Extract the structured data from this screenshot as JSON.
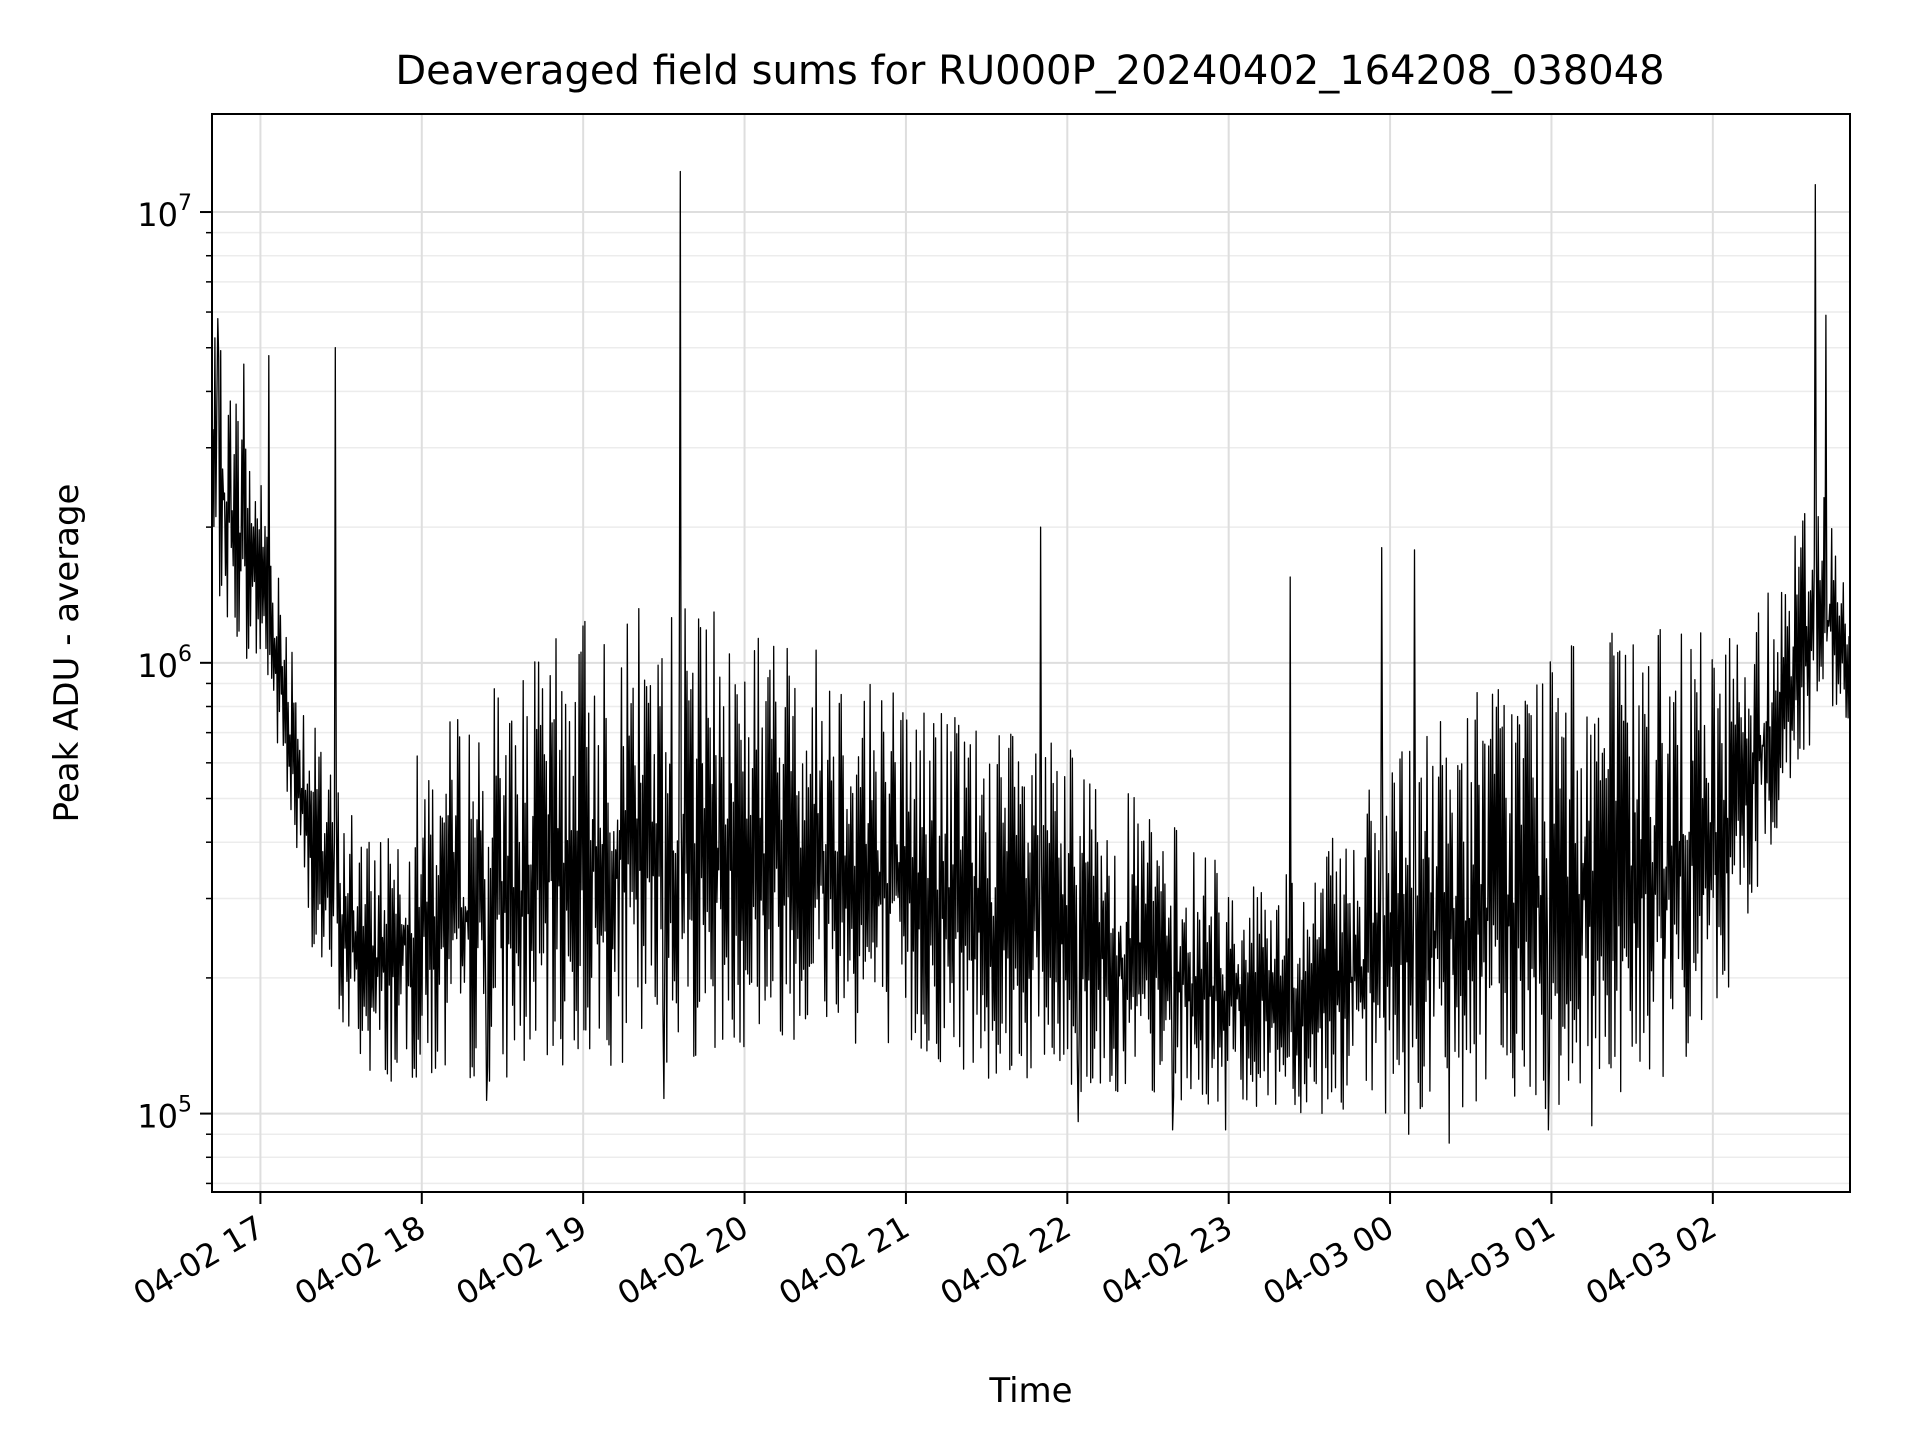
{
  "chart_data": {
    "type": "line",
    "title": "Deaveraged field sums for RU000P_20240402_164208_038048",
    "xlabel": "Time",
    "ylabel": "Peak ADU - average",
    "yscale": "log",
    "xlim": [
      "2024-04-02 16:42",
      "2024-04-03 02:51"
    ],
    "ylim": [
      67000,
      16500000
    ],
    "grid": true,
    "line_color": "#000000",
    "x_ticks": [
      {
        "time": "2024-04-02 17:00",
        "label": "04-02 17"
      },
      {
        "time": "2024-04-02 18:00",
        "label": "04-02 18"
      },
      {
        "time": "2024-04-02 19:00",
        "label": "04-02 19"
      },
      {
        "time": "2024-04-02 20:00",
        "label": "04-02 20"
      },
      {
        "time": "2024-04-02 21:00",
        "label": "04-02 21"
      },
      {
        "time": "2024-04-02 22:00",
        "label": "04-02 22"
      },
      {
        "time": "2024-04-02 23:00",
        "label": "04-02 23"
      },
      {
        "time": "2024-04-03 00:00",
        "label": "04-03 00"
      },
      {
        "time": "2024-04-03 01:00",
        "label": "04-03 01"
      },
      {
        "time": "2024-04-03 02:00",
        "label": "04-03 02"
      }
    ],
    "y_ticks": [
      {
        "value": 100000,
        "base": "10",
        "exp": "5"
      },
      {
        "value": 1000000,
        "base": "10",
        "exp": "6"
      },
      {
        "value": 10000000,
        "base": "10",
        "exp": "7"
      }
    ],
    "envelope": [
      {
        "t": "2024-04-02 16:42",
        "low": 1500000,
        "high": 5500000
      },
      {
        "t": "2024-04-02 16:48",
        "low": 1200000,
        "high": 4500000
      },
      {
        "t": "2024-04-02 16:55",
        "low": 1000000,
        "high": 3500000
      },
      {
        "t": "2024-04-02 17:02",
        "low": 900000,
        "high": 2500000
      },
      {
        "t": "2024-04-02 17:08",
        "low": 550000,
        "high": 1500000
      },
      {
        "t": "2024-04-02 17:15",
        "low": 300000,
        "high": 1000000
      },
      {
        "t": "2024-04-02 17:22",
        "low": 200000,
        "high": 650000
      },
      {
        "t": "2024-04-02 17:30",
        "low": 150000,
        "high": 550000
      },
      {
        "t": "2024-04-02 17:40",
        "low": 120000,
        "high": 400000
      },
      {
        "t": "2024-04-02 17:55",
        "low": 115000,
        "high": 600000
      },
      {
        "t": "2024-04-02 18:15",
        "low": 115000,
        "high": 800000
      },
      {
        "t": "2024-04-02 18:40",
        "low": 120000,
        "high": 1000000
      },
      {
        "t": "2024-04-02 19:00",
        "low": 125000,
        "high": 1300000
      },
      {
        "t": "2024-04-02 19:20",
        "low": 130000,
        "high": 1350000
      },
      {
        "t": "2024-04-02 19:40",
        "low": 130000,
        "high": 1350000
      },
      {
        "t": "2024-04-02 20:00",
        "low": 140000,
        "high": 1250000
      },
      {
        "t": "2024-04-02 20:30",
        "low": 150000,
        "high": 1100000
      },
      {
        "t": "2024-04-02 21:00",
        "low": 130000,
        "high": 900000
      },
      {
        "t": "2024-04-02 21:30",
        "low": 120000,
        "high": 750000
      },
      {
        "t": "2024-04-02 22:00",
        "low": 110000,
        "high": 650000
      },
      {
        "t": "2024-04-02 22:30",
        "low": 105000,
        "high": 480000
      },
      {
        "t": "2024-04-02 23:00",
        "low": 105000,
        "high": 350000
      },
      {
        "t": "2024-04-02 23:30",
        "low": 100000,
        "high": 350000
      },
      {
        "t": "2024-04-03 00:00",
        "low": 100000,
        "high": 600000
      },
      {
        "t": "2024-04-03 00:30",
        "low": 100000,
        "high": 900000
      },
      {
        "t": "2024-04-03 01:00",
        "low": 100000,
        "high": 1100000
      },
      {
        "t": "2024-04-03 01:30",
        "low": 110000,
        "high": 1200000
      },
      {
        "t": "2024-04-03 02:00",
        "low": 140000,
        "high": 1200000
      },
      {
        "t": "2024-04-03 02:15",
        "low": 300000,
        "high": 1300000
      },
      {
        "t": "2024-04-03 02:30",
        "low": 500000,
        "high": 2000000
      },
      {
        "t": "2024-04-03 02:40",
        "low": 700000,
        "high": 3000000
      },
      {
        "t": "2024-04-03 02:51",
        "low": 700000,
        "high": 1300000
      }
    ],
    "notable_points": [
      {
        "t": "2024-04-02 19:36",
        "value": 12300000
      },
      {
        "t": "2024-04-03 02:38",
        "value": 11500000
      },
      {
        "t": "2024-04-02 17:28",
        "value": 5000000
      },
      {
        "t": "2024-04-02 16:44",
        "value": 5800000
      },
      {
        "t": "2024-04-03 02:42",
        "value": 5900000
      },
      {
        "t": "2024-04-02 16:54",
        "value": 4600000
      },
      {
        "t": "2024-04-02 17:03",
        "value": 4800000
      },
      {
        "t": "2024-04-02 21:50",
        "value": 2000000
      },
      {
        "t": "2024-04-02 23:57",
        "value": 1800000
      },
      {
        "t": "2024-04-03 00:09",
        "value": 1780000
      },
      {
        "t": "2024-04-02 23:23",
        "value": 1550000
      },
      {
        "t": "2024-04-02 22:04",
        "value": 96000
      },
      {
        "t": "2024-04-02 22:39",
        "value": 92000
      },
      {
        "t": "2024-04-02 22:59",
        "value": 92000
      },
      {
        "t": "2024-04-03 00:07",
        "value": 90000
      },
      {
        "t": "2024-04-03 00:22",
        "value": 86000
      },
      {
        "t": "2024-04-03 00:59",
        "value": 92000
      },
      {
        "t": "2024-04-03 01:15",
        "value": 94000
      },
      {
        "t": "2024-04-02 19:30",
        "value": 108000
      },
      {
        "t": "2024-04-02 18:24",
        "value": 107000
      }
    ]
  }
}
